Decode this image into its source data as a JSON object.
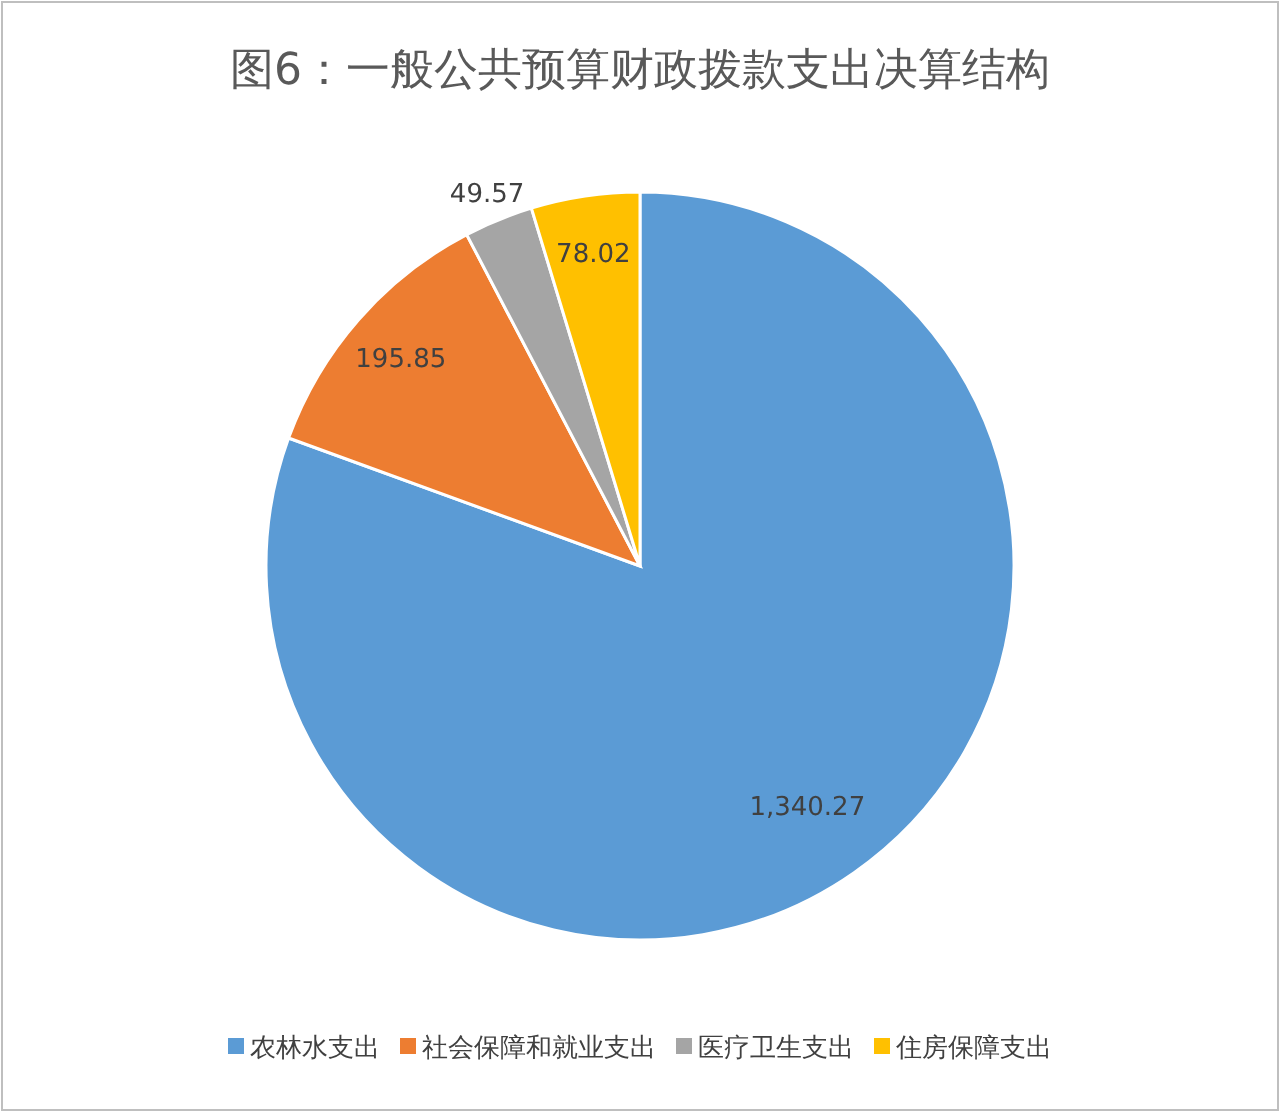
{
  "chart_data": {
    "type": "pie",
    "title": "图6：一般公共预算财政拨款支出决算结构",
    "categories": [
      "农林水支出",
      "社会保障和就业支出",
      "医疗卫生支出",
      "住房保障支出"
    ],
    "values": [
      1340.27,
      195.85,
      49.57,
      78.02
    ],
    "colors": [
      "#5b9bd5",
      "#ed7d31",
      "#a5a5a5",
      "#ffc000"
    ],
    "value_labels": [
      "1,340.27",
      "195.85",
      "49.57",
      "78.02"
    ],
    "legend": "bottom"
  }
}
